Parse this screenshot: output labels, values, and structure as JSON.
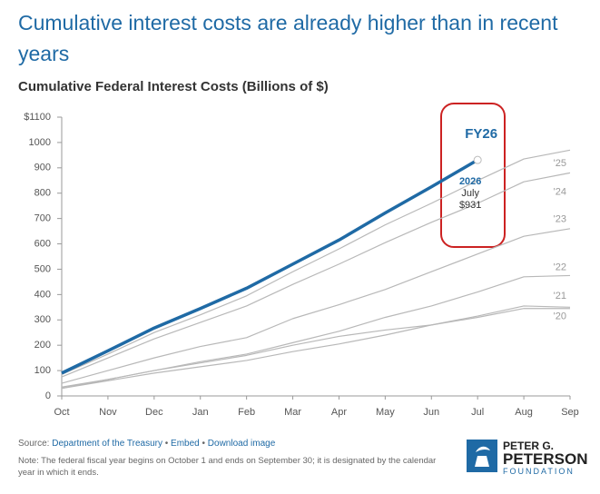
{
  "chart_data": {
    "type": "line",
    "title": "Cumulative interest costs are already higher than in recent years",
    "subtitle": "Cumulative Federal Interest Costs (Billions of $)",
    "categories": [
      "Oct",
      "Nov",
      "Dec",
      "Jan",
      "Feb",
      "Mar",
      "Apr",
      "May",
      "Jun",
      "Jul",
      "Aug",
      "Sep"
    ],
    "series": [
      {
        "name": "FY26",
        "color": "#1f6aa5",
        "values": [
          90,
          178,
          268,
          345,
          425,
          520,
          615,
          722,
          825,
          931,
          null,
          null
        ]
      },
      {
        "name": "'25",
        "color": "#b8b8b8",
        "values": [
          85,
          165,
          250,
          320,
          395,
          490,
          580,
          675,
          760,
          850,
          935,
          970
        ]
      },
      {
        "name": "'24",
        "color": "#b8b8b8",
        "values": [
          75,
          150,
          225,
          290,
          355,
          440,
          520,
          605,
          685,
          760,
          845,
          880
        ]
      },
      {
        "name": "'23",
        "color": "#b8b8b8",
        "values": [
          50,
          100,
          150,
          195,
          230,
          305,
          360,
          420,
          490,
          560,
          630,
          660
        ]
      },
      {
        "name": "'22",
        "color": "#b8b8b8",
        "values": [
          35,
          65,
          100,
          135,
          165,
          210,
          255,
          310,
          355,
          410,
          470,
          475
        ]
      },
      {
        "name": "'21",
        "color": "#b8b8b8",
        "values": [
          30,
          65,
          100,
          130,
          160,
          200,
          235,
          260,
          280,
          315,
          355,
          350
        ]
      },
      {
        "name": "'20",
        "color": "#b8b8b8",
        "values": [
          30,
          60,
          90,
          115,
          140,
          175,
          205,
          240,
          280,
          310,
          345,
          345
        ]
      }
    ],
    "annotation": {
      "year": "2026",
      "month": "July",
      "value_label": "$931"
    },
    "ylim": [
      0,
      1100
    ],
    "yticks": [
      0,
      100,
      200,
      300,
      400,
      500,
      600,
      700,
      800,
      900,
      1000,
      {
        "value": 1100,
        "label": "$1100"
      }
    ],
    "grid": false
  },
  "footer": {
    "source_label": "Source:",
    "links": [
      "Department of the Treasury",
      "Embed",
      "Download image"
    ],
    "note": "Note: The federal fiscal year begins on October 1 and ends on September 30; it is designated by the calendar year in which it ends.",
    "logo": [
      "PETER G.",
      "PETERSON",
      "FOUNDATION"
    ]
  }
}
